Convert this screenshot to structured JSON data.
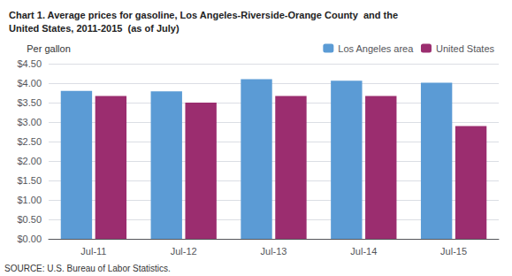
{
  "chart_data": {
    "type": "bar",
    "title": "Chart 1. Average prices for gasoline, Los Angeles-Riverside-Orange County  and the\nUnited States, 2011-2015  (as of July)",
    "ylabel": "Per gallon",
    "annotations": [
      "SOURCE: U.S. Bureau of Labor Statistics."
    ],
    "categories": [
      "Jul-11",
      "Jul-12",
      "Jul-13",
      "Jul-14",
      "Jul-15"
    ],
    "series": [
      {
        "name": "Los Angeles area",
        "color": "#5B9BD5",
        "values": [
          3.8,
          3.79,
          4.1,
          4.06,
          4.01
        ]
      },
      {
        "name": "United States",
        "color": "#9B2D6F",
        "values": [
          3.67,
          3.5,
          3.67,
          3.67,
          2.9
        ]
      }
    ],
    "ylim": [
      0.0,
      4.5
    ],
    "yticks": [
      {
        "value": 0.0,
        "label": "$0.00"
      },
      {
        "value": 0.5,
        "label": "$0.50"
      },
      {
        "value": 1.0,
        "label": "$1.00"
      },
      {
        "value": 1.5,
        "label": "$1.50"
      },
      {
        "value": 2.0,
        "label": "$2.00"
      },
      {
        "value": 2.5,
        "label": "$2.50"
      },
      {
        "value": 3.0,
        "label": "$3.00"
      },
      {
        "value": 3.5,
        "label": "$3.50"
      },
      {
        "value": 4.0,
        "label": "$4.00"
      },
      {
        "value": 4.5,
        "label": "$4.50"
      }
    ],
    "grid": true,
    "legend": "upper left"
  }
}
